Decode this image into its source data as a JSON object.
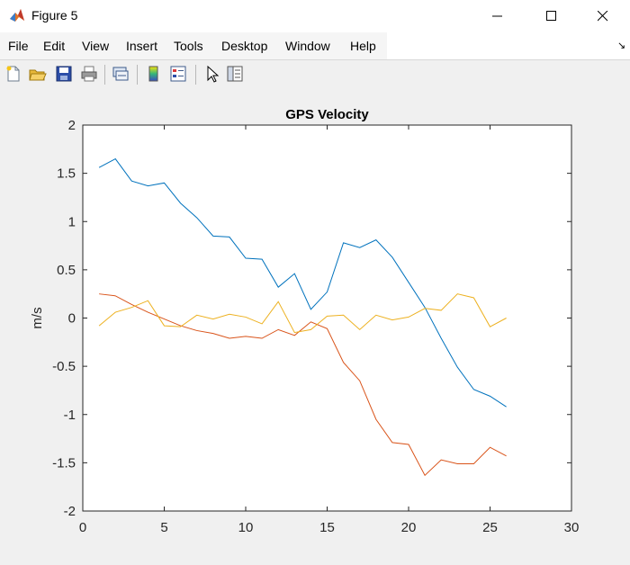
{
  "window": {
    "title": "Figure 5"
  },
  "menu": [
    "File",
    "Edit",
    "View",
    "Insert",
    "Tools",
    "Desktop",
    "Window",
    "Help"
  ],
  "toolbar": {
    "icons": [
      "new-figure-icon",
      "open-file-icon",
      "save-icon",
      "print-icon",
      "link-plot-icon",
      "insert-colorbar-icon",
      "insert-legend-icon",
      "edit-plot-icon",
      "property-inspector-icon"
    ]
  },
  "chart_data": {
    "type": "line",
    "title": "GPS Velocity",
    "xlabel": "",
    "ylabel": "m/s",
    "xlim": [
      0,
      30
    ],
    "ylim": [
      -2,
      2
    ],
    "xticks": [
      0,
      5,
      10,
      15,
      20,
      25,
      30
    ],
    "yticks": [
      2,
      1.5,
      1,
      0.5,
      0,
      -0.5,
      -1,
      -1.5,
      -2
    ],
    "grid": false,
    "x": [
      1,
      2,
      3,
      4,
      5,
      6,
      7,
      8,
      9,
      10,
      11,
      12,
      13,
      14,
      15,
      16,
      17,
      18,
      19,
      20,
      21,
      22,
      23,
      24,
      25,
      26
    ],
    "series": [
      {
        "color": "#0072bd",
        "values": [
          1.56,
          1.65,
          1.42,
          1.37,
          1.4,
          1.19,
          1.04,
          0.85,
          0.84,
          0.62,
          0.61,
          0.32,
          0.46,
          0.09,
          0.27,
          0.78,
          0.73,
          0.81,
          0.63,
          0.37,
          0.11,
          -0.21,
          -0.51,
          -0.74,
          -0.81,
          -0.92
        ]
      },
      {
        "color": "#d95319",
        "values": [
          0.25,
          0.23,
          0.14,
          0.06,
          -0.01,
          -0.08,
          -0.13,
          -0.16,
          -0.21,
          -0.19,
          -0.21,
          -0.12,
          -0.18,
          -0.04,
          -0.11,
          -0.46,
          -0.65,
          -1.05,
          -1.29,
          -1.31,
          -1.63,
          -1.47,
          -1.51,
          -1.51,
          -1.34,
          -1.43
        ]
      },
      {
        "color": "#edb120",
        "values": [
          -0.08,
          0.06,
          0.11,
          0.18,
          -0.08,
          -0.09,
          0.03,
          -0.01,
          0.04,
          0.01,
          -0.06,
          0.17,
          -0.15,
          -0.12,
          0.02,
          0.03,
          -0.12,
          0.03,
          -0.02,
          0.01,
          0.1,
          0.08,
          0.25,
          0.21,
          -0.09,
          0.0
        ]
      }
    ]
  }
}
